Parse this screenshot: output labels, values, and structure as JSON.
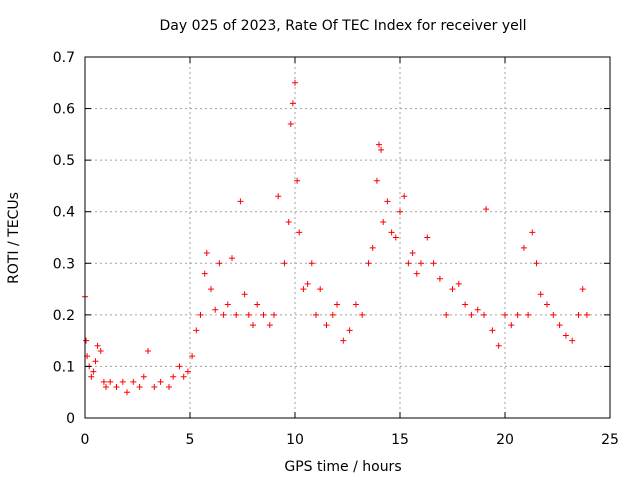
{
  "chart_data": {
    "type": "scatter",
    "title": "Day 025 of 2023, Rate Of TEC Index for receiver yell",
    "xlabel": "GPS time / hours",
    "ylabel": "ROTI / TECUs",
    "xlim": [
      0,
      25
    ],
    "ylim": [
      0,
      0.7
    ],
    "xticks": [
      0,
      5,
      10,
      15,
      20,
      25
    ],
    "yticks": [
      0,
      0.1,
      0.2,
      0.3,
      0.4,
      0.5,
      0.6,
      0.7
    ],
    "xtick_labels": [
      "0",
      "5",
      "10",
      "15",
      "20",
      "25"
    ],
    "ytick_labels": [
      "0",
      "0.1",
      "0.2",
      "0.3",
      "0.4",
      "0.5",
      "0.6",
      "0.7"
    ],
    "grid": true,
    "marker": "+",
    "series": [
      {
        "name": "ROTI",
        "color": "#ff0000",
        "x": [
          0.0,
          0.05,
          0.1,
          0.2,
          0.3,
          0.4,
          0.5,
          0.6,
          0.75,
          0.9,
          1.0,
          1.2,
          1.5,
          1.8,
          2.0,
          2.3,
          2.6,
          2.8,
          3.0,
          3.3,
          3.6,
          4.0,
          4.2,
          4.5,
          4.7,
          4.9,
          5.1,
          5.3,
          5.5,
          5.7,
          5.8,
          6.0,
          6.2,
          6.4,
          6.6,
          6.8,
          7.0,
          7.2,
          7.4,
          7.6,
          7.8,
          8.0,
          8.2,
          8.5,
          8.8,
          9.0,
          9.2,
          9.5,
          9.7,
          9.8,
          9.9,
          10.0,
          10.1,
          10.2,
          10.4,
          10.6,
          10.8,
          11.0,
          11.2,
          11.5,
          11.8,
          12.0,
          12.3,
          12.6,
          12.9,
          13.2,
          13.5,
          13.7,
          13.9,
          14.0,
          14.1,
          14.2,
          14.4,
          14.6,
          14.8,
          15.0,
          15.2,
          15.4,
          15.6,
          15.8,
          16.0,
          16.3,
          16.6,
          16.9,
          17.2,
          17.5,
          17.8,
          18.1,
          18.4,
          18.7,
          19.0,
          19.1,
          19.4,
          19.7,
          20.0,
          20.3,
          20.6,
          20.9,
          21.1,
          21.3,
          21.5,
          21.7,
          22.0,
          22.3,
          22.6,
          22.9,
          23.2,
          23.5,
          23.7,
          23.9
        ],
        "y": [
          0.235,
          0.15,
          0.12,
          0.1,
          0.08,
          0.09,
          0.11,
          0.14,
          0.13,
          0.07,
          0.06,
          0.07,
          0.06,
          0.07,
          0.05,
          0.07,
          0.06,
          0.08,
          0.13,
          0.06,
          0.07,
          0.06,
          0.08,
          0.1,
          0.08,
          0.09,
          0.12,
          0.17,
          0.2,
          0.28,
          0.32,
          0.25,
          0.21,
          0.3,
          0.2,
          0.22,
          0.31,
          0.2,
          0.42,
          0.24,
          0.2,
          0.18,
          0.22,
          0.2,
          0.18,
          0.2,
          0.43,
          0.3,
          0.38,
          0.57,
          0.61,
          0.65,
          0.46,
          0.36,
          0.25,
          0.26,
          0.3,
          0.2,
          0.25,
          0.18,
          0.2,
          0.22,
          0.15,
          0.17,
          0.22,
          0.2,
          0.3,
          0.33,
          0.46,
          0.53,
          0.52,
          0.38,
          0.42,
          0.36,
          0.35,
          0.4,
          0.43,
          0.3,
          0.32,
          0.28,
          0.3,
          0.35,
          0.3,
          0.27,
          0.2,
          0.25,
          0.26,
          0.22,
          0.2,
          0.21,
          0.2,
          0.405,
          0.17,
          0.14,
          0.2,
          0.18,
          0.2,
          0.33,
          0.2,
          0.36,
          0.3,
          0.24,
          0.22,
          0.2,
          0.18,
          0.16,
          0.15,
          0.2,
          0.25,
          0.2
        ]
      }
    ]
  }
}
